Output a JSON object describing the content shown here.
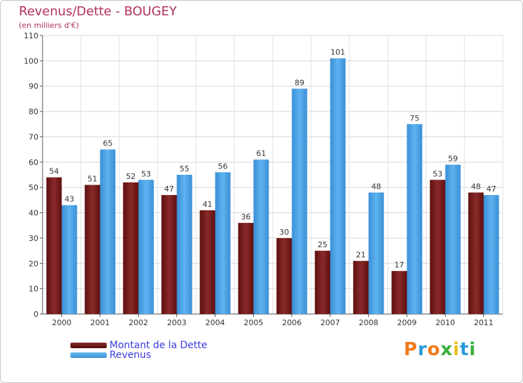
{
  "title": "Revenus/Dette - BOUGEY",
  "subtitle": "(en milliers d'€)",
  "colors": {
    "dette": "#7a1a1a",
    "revenus": "#4aa3e8",
    "title": "#b03060"
  },
  "legend": {
    "dette": "Montant de la Dette",
    "revenus": "Revenus"
  },
  "logo": {
    "text": "Proxiti",
    "letters": [
      "P",
      "r",
      "o",
      "x",
      "i",
      "t",
      "i"
    ]
  },
  "chart_data": {
    "type": "bar",
    "title": "Revenus/Dette - BOUGEY",
    "ylabel": "(en milliers d'€)",
    "categories": [
      "2000",
      "2001",
      "2002",
      "2003",
      "2004",
      "2005",
      "2006",
      "2007",
      "2008",
      "2009",
      "2010",
      "2011"
    ],
    "series": [
      {
        "name": "Montant de la Dette",
        "values": [
          54,
          51,
          52,
          47,
          41,
          36,
          30,
          25,
          21,
          17,
          53,
          48
        ]
      },
      {
        "name": "Revenus",
        "values": [
          43,
          65,
          53,
          55,
          56,
          61,
          89,
          101,
          48,
          75,
          59,
          47
        ]
      }
    ],
    "ylim": [
      0,
      110
    ],
    "yticks": [
      0,
      10,
      20,
      30,
      40,
      50,
      60,
      70,
      80,
      90,
      100,
      110
    ],
    "grid": true
  }
}
